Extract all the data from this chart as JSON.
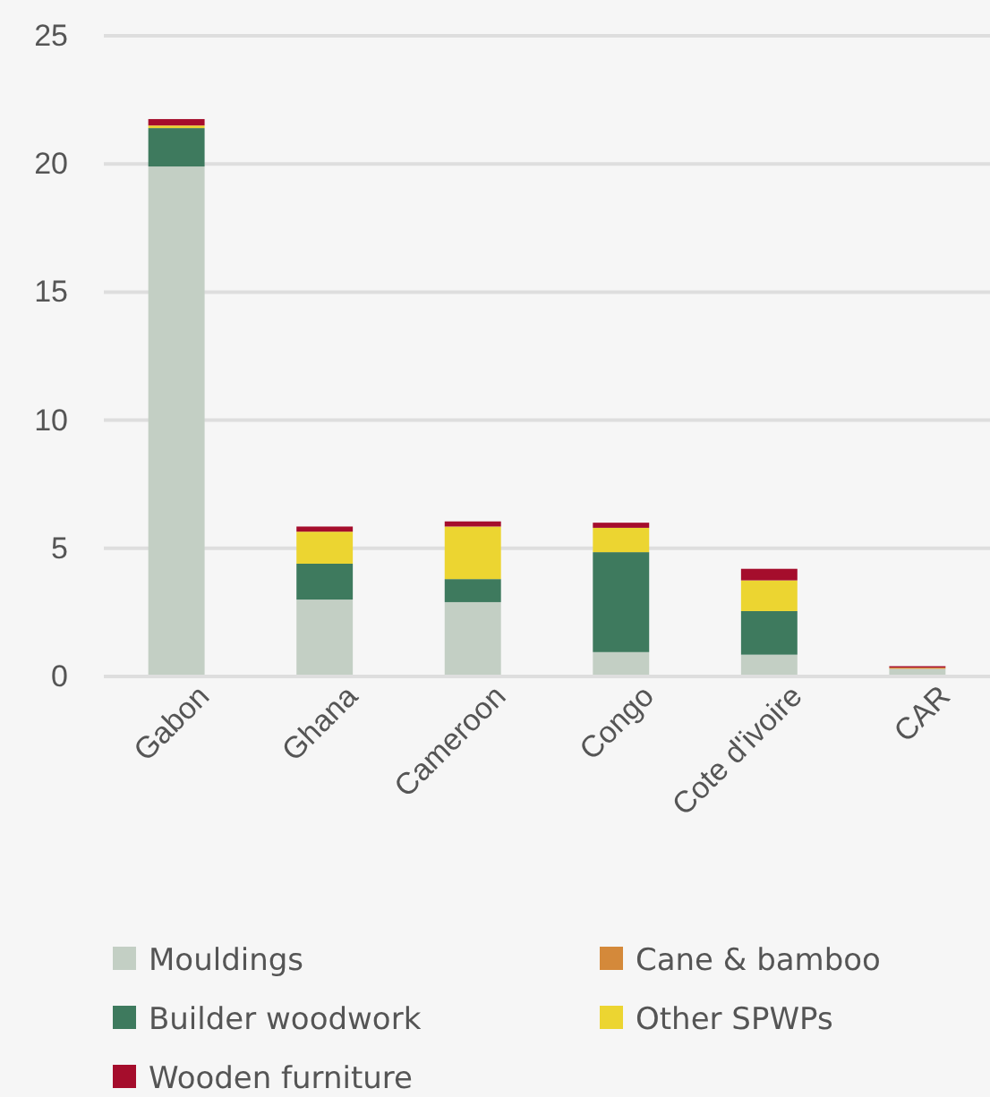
{
  "chart_data": {
    "type": "bar",
    "stacked": true,
    "categories": [
      "Gabon",
      "Ghana",
      "Cameroon",
      "Congo",
      "Cote d'ivoire",
      "CAR"
    ],
    "series": [
      {
        "name": "Mouldings",
        "color": "#c3cfc4",
        "values": [
          19.9,
          3.0,
          2.9,
          0.95,
          0.85,
          0.3
        ]
      },
      {
        "name": "Builder woodwork",
        "color": "#3e7a5e",
        "values": [
          1.5,
          1.4,
          0.9,
          3.9,
          1.7,
          0.0
        ]
      },
      {
        "name": "Cane & bamboo",
        "color": "#d4893a",
        "values": [
          0.0,
          0.0,
          0.0,
          0.0,
          0.0,
          0.05
        ]
      },
      {
        "name": "Other SPWPs",
        "color": "#ecd531",
        "values": [
          0.1,
          1.25,
          2.05,
          0.95,
          1.2,
          0.0
        ]
      },
      {
        "name": "Wooden furniture",
        "color": "#a50d2c",
        "values": [
          0.25,
          0.2,
          0.2,
          0.2,
          0.45,
          0.05
        ]
      }
    ],
    "ylim": [
      0,
      25
    ],
    "yticks": [
      0,
      5,
      10,
      15,
      20,
      25
    ],
    "grid": "y",
    "legend": "bottom"
  }
}
